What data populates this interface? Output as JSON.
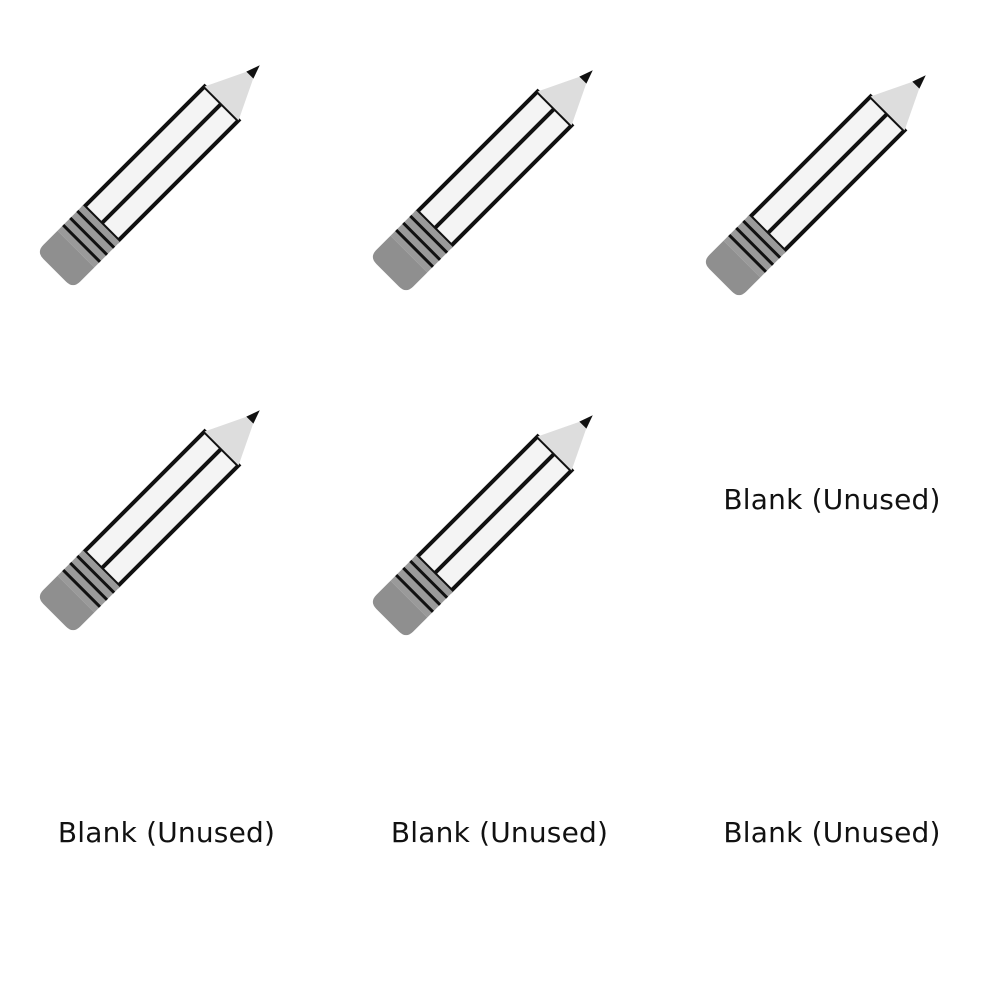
{
  "sheet": {
    "cells": [
      {
        "kind": "pencil",
        "icon": "pencil-icon"
      },
      {
        "kind": "pencil",
        "icon": "pencil-icon"
      },
      {
        "kind": "pencil",
        "icon": "pencil-icon"
      },
      {
        "kind": "pencil",
        "icon": "pencil-icon"
      },
      {
        "kind": "pencil",
        "icon": "pencil-icon"
      },
      {
        "kind": "blank",
        "label": "Blank (Unused)"
      },
      {
        "kind": "blank",
        "label": "Blank (Unused)"
      },
      {
        "kind": "blank",
        "label": "Blank (Unused)"
      },
      {
        "kind": "blank",
        "label": "Blank (Unused)"
      }
    ]
  },
  "colors": {
    "background": "#ffffff",
    "body": "#f4f4f4",
    "outline": "#111111",
    "tip": "#dddddd",
    "lead": "#111111",
    "ferrule": "#9a9a9a",
    "eraser": "#8f8f8f"
  }
}
